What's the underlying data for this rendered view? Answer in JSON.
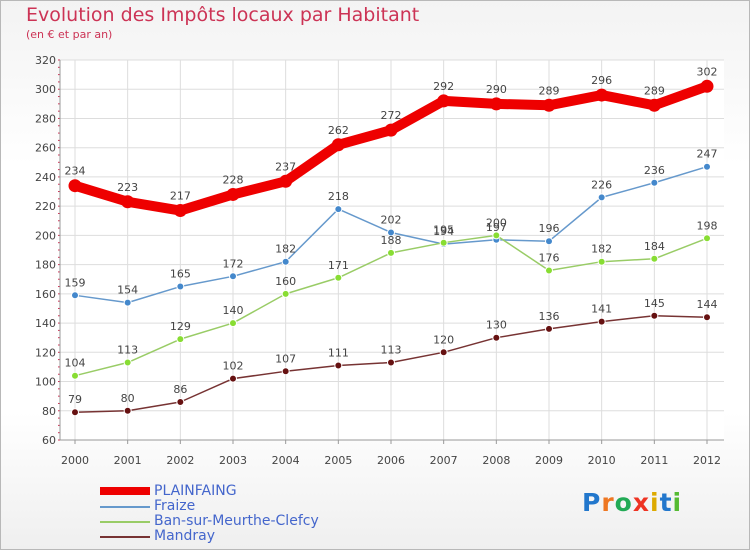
{
  "chart_data": {
    "type": "line",
    "title": "Evolution des Impôts locaux par Habitant",
    "subtitle": "(en € et par an)",
    "x": [
      "2000",
      "2001",
      "2002",
      "2003",
      "2004",
      "2005",
      "2006",
      "2007",
      "2008",
      "2009",
      "2010",
      "2011",
      "2012"
    ],
    "ylim": [
      60,
      320
    ],
    "yticks": [
      60,
      80,
      100,
      120,
      140,
      160,
      180,
      200,
      220,
      240,
      260,
      280,
      300,
      320
    ],
    "grid": true,
    "legend_position": "bottom-left",
    "series": [
      {
        "name": "PLAINFAING",
        "values": [
          234,
          223,
          217,
          228,
          237,
          262,
          272,
          292,
          290,
          289,
          296,
          289,
          302
        ],
        "color": "#ee0000",
        "line": "#ee0000",
        "thick": true
      },
      {
        "name": "Fraize",
        "values": [
          159,
          154,
          165,
          172,
          182,
          218,
          202,
          194,
          197,
          196,
          226,
          236,
          247
        ],
        "color": "#4488cc",
        "line": "#6699cc",
        "thick": false
      },
      {
        "name": "Ban-sur-Meurthe-Clefcy",
        "values": [
          104,
          113,
          129,
          140,
          160,
          171,
          188,
          195,
          200,
          176,
          182,
          184,
          198
        ],
        "color": "#88dd33",
        "line": "#99cc66",
        "thick": false
      },
      {
        "name": "Mandray",
        "values": [
          79,
          80,
          86,
          102,
          107,
          111,
          113,
          120,
          130,
          136,
          141,
          145,
          144
        ],
        "color": "#661111",
        "line": "#773333",
        "thick": false
      }
    ]
  },
  "logo": {
    "letters": [
      "P",
      "r",
      "o",
      "x",
      "i",
      "t",
      "i"
    ],
    "colors": [
      "#2277cc",
      "#ee7722",
      "#22aa55",
      "#ee3322",
      "#ddaa00",
      "#2277cc",
      "#55bb33"
    ]
  }
}
